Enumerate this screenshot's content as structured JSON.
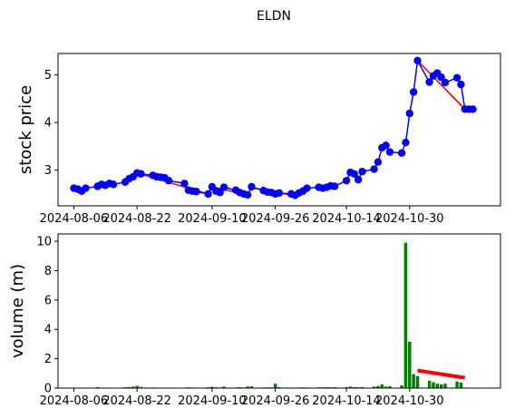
{
  "title": "ELDN",
  "colors": {
    "price_line": "#0000ff",
    "price_marker": "#0000ff",
    "trend_line": "#ff0000",
    "volume_bar": "#008000",
    "price_ylabel": "#0000ff",
    "volume_ylabel": "#008000",
    "axis": "#000000"
  },
  "chart_data": [
    {
      "type": "line",
      "ylabel": "stock price",
      "ylim": [
        2.25,
        5.45
      ],
      "yticks": [
        3,
        4,
        5
      ],
      "xlim": [
        "2024-08-02",
        "2024-11-22"
      ],
      "xticks": [
        "2024-08-06",
        "2024-08-22",
        "2024-09-10",
        "2024-09-26",
        "2024-10-14",
        "2024-10-30"
      ],
      "grid": false,
      "series": [
        {
          "x": [
            "2024-08-06",
            "2024-08-07",
            "2024-08-08",
            "2024-08-09",
            "2024-08-12",
            "2024-08-13",
            "2024-08-14",
            "2024-08-15",
            "2024-08-16",
            "2024-08-19",
            "2024-08-20",
            "2024-08-21",
            "2024-08-22",
            "2024-08-23",
            "2024-08-26",
            "2024-08-27",
            "2024-08-28",
            "2024-08-29",
            "2024-08-30",
            "2024-09-03",
            "2024-09-04",
            "2024-09-05",
            "2024-09-06",
            "2024-09-09",
            "2024-09-10",
            "2024-09-11",
            "2024-09-12",
            "2024-09-13",
            "2024-09-16",
            "2024-09-17",
            "2024-09-18",
            "2024-09-19",
            "2024-09-20",
            "2024-09-23",
            "2024-09-24",
            "2024-09-25",
            "2024-09-26",
            "2024-09-27",
            "2024-09-30",
            "2024-10-01",
            "2024-10-02",
            "2024-10-03",
            "2024-10-04",
            "2024-10-07",
            "2024-10-08",
            "2024-10-09",
            "2024-10-10",
            "2024-10-11",
            "2024-10-14",
            "2024-10-15",
            "2024-10-16",
            "2024-10-17",
            "2024-10-18",
            "2024-10-21",
            "2024-10-22",
            "2024-10-23",
            "2024-10-24",
            "2024-10-25",
            "2024-10-28",
            "2024-10-29",
            "2024-10-30",
            "2024-10-31",
            "2024-11-01",
            "2024-11-04",
            "2024-11-05",
            "2024-11-06",
            "2024-11-07",
            "2024-11-08",
            "2024-11-11",
            "2024-11-12",
            "2024-11-13",
            "2024-11-14",
            "2024-11-15"
          ],
          "y": [
            2.62,
            2.6,
            2.56,
            2.62,
            2.66,
            2.7,
            2.68,
            2.72,
            2.7,
            2.75,
            2.82,
            2.86,
            2.94,
            2.92,
            2.89,
            2.86,
            2.85,
            2.84,
            2.78,
            2.72,
            2.58,
            2.56,
            2.55,
            2.5,
            2.65,
            2.56,
            2.53,
            2.64,
            2.58,
            2.53,
            2.5,
            2.48,
            2.65,
            2.57,
            2.54,
            2.53,
            2.5,
            2.52,
            2.5,
            2.47,
            2.52,
            2.56,
            2.62,
            2.64,
            2.62,
            2.64,
            2.67,
            2.66,
            2.78,
            2.95,
            2.92,
            2.8,
            2.97,
            3.02,
            3.17,
            3.47,
            3.52,
            3.38,
            3.36,
            3.58,
            4.19,
            4.64,
            5.3,
            4.85,
            4.98,
            5.04,
            4.95,
            4.84,
            4.94,
            4.8,
            4.28,
            4.28,
            4.28
          ]
        }
      ],
      "trend_lines": [
        {
          "x": [
            "2024-08-22",
            "2024-09-09"
          ],
          "y": [
            2.94,
            2.5
          ]
        },
        {
          "x": [
            "2024-09-10",
            "2024-09-19"
          ],
          "y": [
            2.65,
            2.48
          ]
        },
        {
          "x": [
            "2024-09-20",
            "2024-10-01"
          ],
          "y": [
            2.63,
            2.46
          ]
        },
        {
          "x": [
            "2024-11-01",
            "2024-11-13"
          ],
          "y": [
            5.3,
            4.28
          ]
        }
      ]
    },
    {
      "type": "bar",
      "ylabel": "volume (m)",
      "ylim": [
        0,
        10.5
      ],
      "yticks": [
        0,
        2,
        4,
        6,
        8,
        10
      ],
      "xlim": [
        "2024-08-02",
        "2024-11-22"
      ],
      "xticks": [
        "2024-08-06",
        "2024-08-22",
        "2024-09-10",
        "2024-09-26",
        "2024-10-14",
        "2024-10-30"
      ],
      "grid": false,
      "x": [
        "2024-08-06",
        "2024-08-07",
        "2024-08-08",
        "2024-08-09",
        "2024-08-12",
        "2024-08-13",
        "2024-08-14",
        "2024-08-15",
        "2024-08-16",
        "2024-08-19",
        "2024-08-20",
        "2024-08-21",
        "2024-08-22",
        "2024-08-23",
        "2024-08-26",
        "2024-08-27",
        "2024-08-28",
        "2024-08-29",
        "2024-08-30",
        "2024-09-03",
        "2024-09-04",
        "2024-09-05",
        "2024-09-06",
        "2024-09-09",
        "2024-09-10",
        "2024-09-11",
        "2024-09-12",
        "2024-09-13",
        "2024-09-16",
        "2024-09-17",
        "2024-09-18",
        "2024-09-19",
        "2024-09-20",
        "2024-09-23",
        "2024-09-24",
        "2024-09-25",
        "2024-09-26",
        "2024-09-27",
        "2024-09-30",
        "2024-10-01",
        "2024-10-02",
        "2024-10-03",
        "2024-10-04",
        "2024-10-07",
        "2024-10-08",
        "2024-10-09",
        "2024-10-10",
        "2024-10-11",
        "2024-10-14",
        "2024-10-15",
        "2024-10-16",
        "2024-10-17",
        "2024-10-18",
        "2024-10-21",
        "2024-10-22",
        "2024-10-23",
        "2024-10-24",
        "2024-10-25",
        "2024-10-28",
        "2024-10-29",
        "2024-10-30",
        "2024-10-31",
        "2024-11-01",
        "2024-11-04",
        "2024-11-05",
        "2024-11-06",
        "2024-11-07",
        "2024-11-08",
        "2024-11-11",
        "2024-11-12",
        "2024-11-13",
        "2024-11-14",
        "2024-11-15"
      ],
      "values": [
        0.03,
        0.03,
        0.02,
        0.03,
        0.06,
        0.03,
        0.02,
        0.03,
        0.02,
        0.05,
        0.07,
        0.1,
        0.15,
        0.08,
        0.04,
        0.03,
        0.03,
        0.03,
        0.03,
        0.03,
        0.05,
        0.04,
        0.03,
        0.06,
        0.09,
        0.05,
        0.04,
        0.1,
        0.04,
        0.06,
        0.04,
        0.11,
        0.12,
        0.04,
        0.05,
        0.05,
        0.3,
        0.06,
        0.04,
        0.03,
        0.04,
        0.05,
        0.04,
        0.05,
        0.05,
        0.06,
        0.05,
        0.06,
        0.06,
        0.1,
        0.06,
        0.05,
        0.07,
        0.1,
        0.14,
        0.25,
        0.1,
        0.12,
        0.18,
        9.9,
        3.15,
        0.95,
        0.82,
        0.5,
        0.4,
        0.3,
        0.25,
        0.3,
        0.45,
        0.38,
        0.03,
        0.03,
        0.03
      ],
      "trend_lines": [
        {
          "x": [
            "2024-11-01",
            "2024-11-13"
          ],
          "y": [
            1.2,
            0.7
          ]
        }
      ]
    }
  ]
}
